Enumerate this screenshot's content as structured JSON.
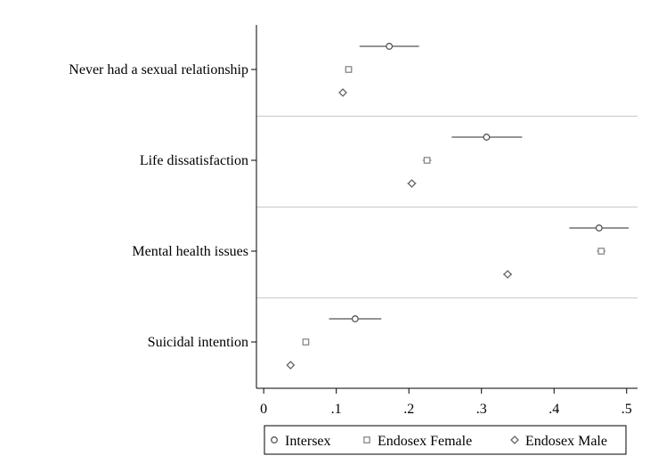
{
  "chart_data": {
    "type": "scatter",
    "subtype": "coefficient-plot-with-confidence-intervals",
    "orientation": "horizontal",
    "categories": [
      "Never had a sexual relationship",
      "Life dissatisfaction",
      "Mental health issues",
      "Suicidal intention"
    ],
    "xticks": [
      "0",
      ".1",
      ".2",
      ".3",
      ".4",
      ".5"
    ],
    "xtick_values": [
      0,
      0.1,
      0.2,
      0.3,
      0.4,
      0.5
    ],
    "xlim": [
      -0.01,
      0.515
    ],
    "grid": false,
    "legend_position": "bottom",
    "series": [
      {
        "name": "Intersex",
        "marker": "circle",
        "color": "#555555",
        "values": [
          0.173,
          0.307,
          0.462,
          0.126
        ],
        "ci_low": [
          0.132,
          0.259,
          0.421,
          0.09
        ],
        "ci_high": [
          0.214,
          0.356,
          0.503,
          0.162
        ]
      },
      {
        "name": "Endosex Female",
        "marker": "square",
        "color": "#888888",
        "values": [
          0.117,
          0.225,
          0.465,
          0.058
        ],
        "ci_low": [
          0.112,
          0.219,
          0.459,
          0.055
        ],
        "ci_high": [
          0.122,
          0.231,
          0.471,
          0.061
        ]
      },
      {
        "name": "Endosex Male",
        "marker": "diamond",
        "color": "#666666",
        "values": [
          0.109,
          0.204,
          0.336,
          0.037
        ],
        "ci_low": [
          0.104,
          0.198,
          0.33,
          0.034
        ],
        "ci_high": [
          0.114,
          0.21,
          0.342,
          0.04
        ]
      }
    ]
  }
}
